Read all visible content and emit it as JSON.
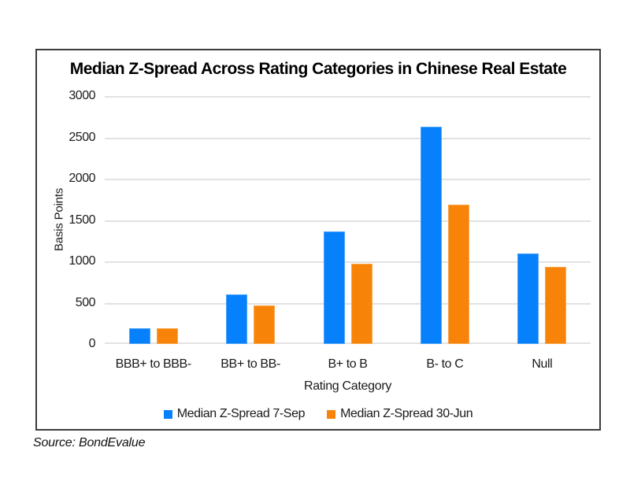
{
  "source": "Source: BondEvalue",
  "chart_data": {
    "type": "bar",
    "title": "Median Z-Spread Across Rating Categories in Chinese Real Estate",
    "xlabel": "Rating Category",
    "ylabel": "Basis Points",
    "categories": [
      "BBB+ to BBB-",
      "BB+ to BB-",
      "B+ to B",
      "B- to C",
      "Null"
    ],
    "series": [
      {
        "name": "Median Z-Spread 7-Sep",
        "color": "#0680fb",
        "values": [
          190,
          600,
          1365,
          2630,
          1095
        ]
      },
      {
        "name": "Median Z-Spread 30-Jun",
        "color": "#f78408",
        "values": [
          190,
          470,
          970,
          1690,
          935
        ]
      }
    ],
    "ylim": [
      0,
      3000
    ],
    "yticks": [
      0,
      500,
      1000,
      1500,
      2000,
      2500,
      3000
    ],
    "grid": true,
    "legend_position": "bottom"
  }
}
